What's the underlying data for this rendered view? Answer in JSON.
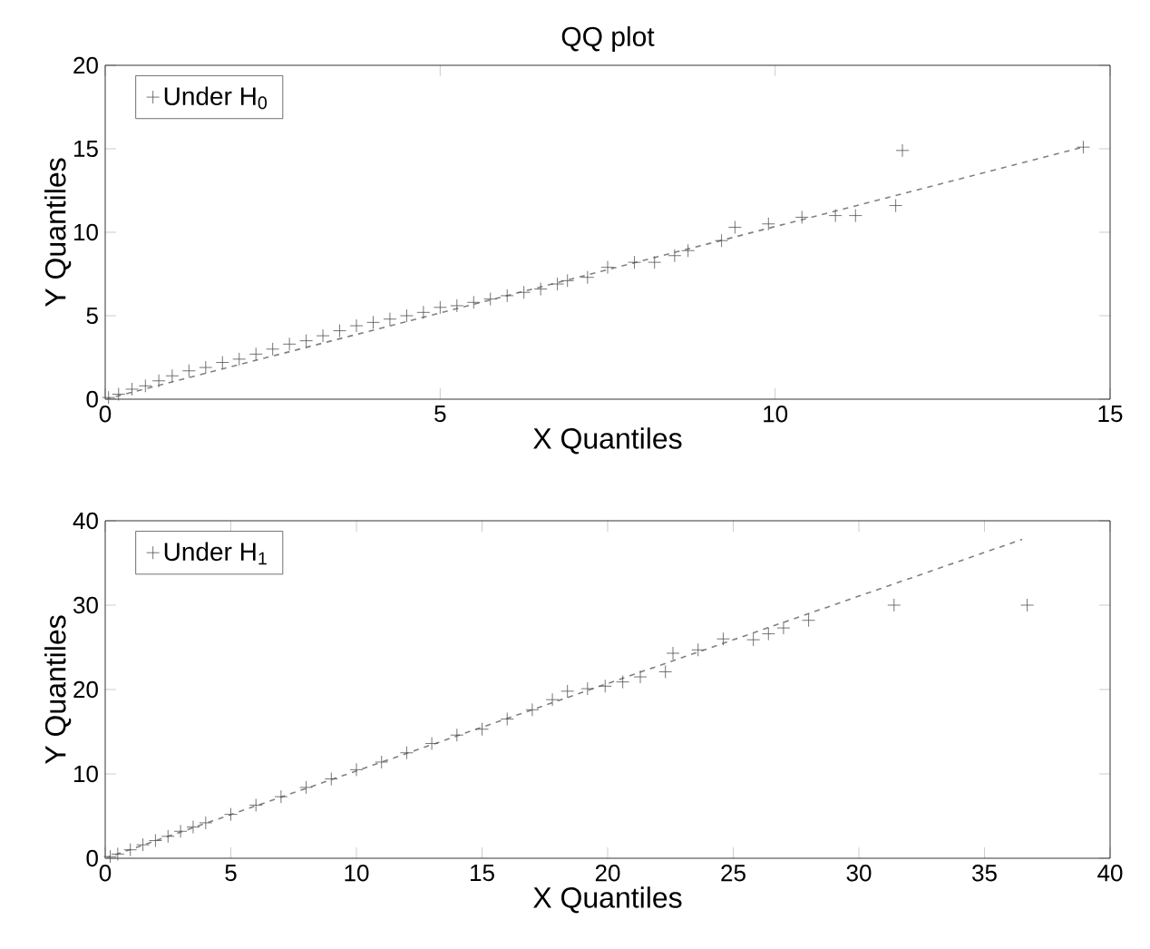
{
  "chart_data": [
    {
      "type": "scatter",
      "title": "QQ plot",
      "xlabel": "X Quantiles",
      "ylabel": "Y Quantiles",
      "xlim": [
        0,
        15
      ],
      "ylim": [
        0,
        20
      ],
      "xticks": [
        0,
        5,
        10,
        15
      ],
      "yticks": [
        0,
        5,
        10,
        15,
        20
      ],
      "legend": "top left",
      "grid": false,
      "series": [
        {
          "name": "Under H$_{0}$",
          "marker": "cross",
          "color": "#505050",
          "x": [
            0.05,
            0.2,
            0.4,
            0.6,
            0.8,
            1,
            1.25,
            1.5,
            1.75,
            2,
            2.25,
            2.5,
            2.75,
            3,
            3.25,
            3.5,
            3.75,
            4,
            4.25,
            4.5,
            4.75,
            5,
            5.25,
            5.5,
            5.75,
            6,
            6.25,
            6.5,
            6.75,
            6.9,
            7.2,
            7.5,
            7.9,
            8.2,
            8.5,
            8.7,
            9.2,
            9.4,
            9.9,
            10.4,
            10.9,
            11.2,
            11.8,
            11.9,
            14.6
          ],
          "values": [
            0.1,
            0.3,
            0.6,
            0.8,
            1.1,
            1.4,
            1.7,
            1.9,
            2.2,
            2.4,
            2.7,
            3.0,
            3.3,
            3.5,
            3.8,
            4.1,
            4.4,
            4.6,
            4.8,
            5.0,
            5.2,
            5.5,
            5.6,
            5.8,
            6.0,
            6.2,
            6.4,
            6.6,
            6.9,
            7.1,
            7.3,
            7.9,
            8.2,
            8.2,
            8.6,
            8.9,
            9.5,
            10.3,
            10.5,
            10.9,
            11.0,
            11.0,
            11.6,
            14.9,
            15.1
          ]
        },
        {
          "type": "line",
          "color": "#808080",
          "line_style": "dashed",
          "x": [
            0,
            14.6
          ],
          "values": [
            0,
            15.1
          ]
        }
      ]
    },
    {
      "type": "scatter",
      "xlabel": "X Quantiles",
      "ylabel": "Y Quantiles",
      "xlim": [
        0,
        40
      ],
      "ylim": [
        0,
        40
      ],
      "xticks": [
        0,
        5,
        10,
        15,
        20,
        25,
        30,
        35,
        40
      ],
      "yticks": [
        0,
        10,
        20,
        30,
        40
      ],
      "legend": "top left",
      "grid": false,
      "series": [
        {
          "name": "Under H$_{1}$",
          "marker": "cross",
          "color": "#505050",
          "x": [
            0.2,
            0.5,
            1,
            1.5,
            2,
            2.5,
            3,
            3.5,
            4,
            5,
            6,
            7,
            8,
            9,
            10,
            11,
            12,
            13,
            14,
            15,
            16,
            17,
            17.8,
            18.4,
            19.2,
            19.9,
            20.6,
            21.3,
            22.3,
            22.6,
            23.6,
            24.6,
            25.8,
            26.4,
            27.0,
            28.0,
            31.4,
            36.7
          ],
          "values": [
            0.2,
            0.5,
            1.0,
            1.6,
            2.1,
            2.6,
            3.2,
            3.7,
            4.2,
            5.2,
            6.3,
            7.3,
            8.4,
            9.4,
            10.5,
            11.4,
            12.5,
            13.6,
            14.6,
            15.3,
            16.5,
            17.6,
            18.8,
            19.8,
            20.1,
            20.4,
            20.9,
            21.5,
            22.1,
            24.3,
            24.7,
            26.0,
            25.9,
            26.6,
            27.3,
            28.2,
            30,
            30
          ]
        },
        {
          "type": "line",
          "color": "#808080",
          "line_style": "dashed",
          "x": [
            0,
            36.5
          ],
          "values": [
            0,
            37.8
          ]
        }
      ]
    }
  ]
}
